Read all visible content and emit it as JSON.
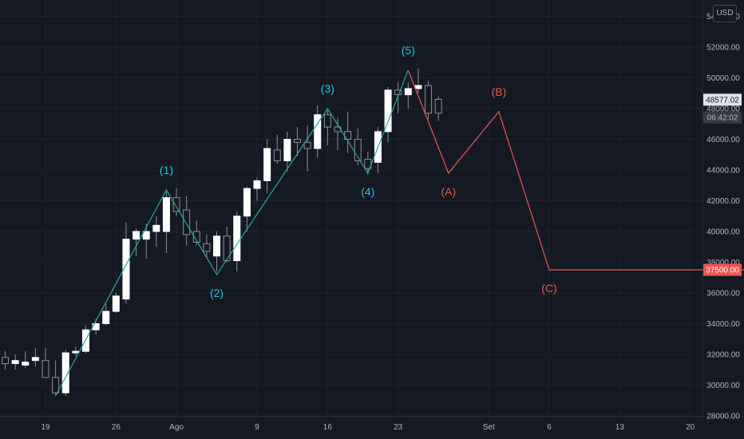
{
  "currency": "USD",
  "chart_data": {
    "type": "candlestick",
    "y_axis": {
      "min": 27000,
      "max": 55000,
      "tick_labels": [
        "54000.00",
        "52000.00",
        "50000.00",
        "48000.00",
        "46000.00",
        "44000.00",
        "42000.00",
        "40000.00",
        "38000.00",
        "36000.00",
        "34000.00",
        "32000.00",
        "30000.00",
        "28000.00"
      ],
      "ticks": [
        54000,
        52000,
        50000,
        48000,
        46000,
        44000,
        42000,
        40000,
        38000,
        36000,
        34000,
        32000,
        30000,
        28000
      ]
    },
    "x_axis": {
      "tick_labels": [
        "19",
        "26",
        "Ago",
        "9",
        "16",
        "23",
        "Set",
        "6",
        "13",
        "20"
      ],
      "tick_days": [
        0,
        7,
        13,
        21,
        28,
        35,
        44,
        50,
        57,
        64
      ]
    },
    "candles": [
      {
        "d": -5,
        "o": 32800,
        "h": 33200,
        "l": 31800,
        "c": 32000
      },
      {
        "d": -4,
        "o": 31800,
        "h": 32200,
        "l": 31000,
        "c": 31400
      },
      {
        "d": -3,
        "o": 31400,
        "h": 32000,
        "l": 31000,
        "c": 31600
      },
      {
        "d": -2,
        "o": 31300,
        "h": 32200,
        "l": 31100,
        "c": 31500
      },
      {
        "d": -1,
        "o": 31600,
        "h": 32400,
        "l": 31200,
        "c": 31800
      },
      {
        "d": 0,
        "o": 31600,
        "h": 32400,
        "l": 30500,
        "c": 30500
      },
      {
        "d": 1,
        "o": 30500,
        "h": 31600,
        "l": 29300,
        "c": 29500
      },
      {
        "d": 2,
        "o": 29500,
        "h": 32300,
        "l": 29300,
        "c": 32100
      },
      {
        "d": 3,
        "o": 32100,
        "h": 32500,
        "l": 31900,
        "c": 32200
      },
      {
        "d": 4,
        "o": 32200,
        "h": 33900,
        "l": 32100,
        "c": 33600
      },
      {
        "d": 5,
        "o": 33600,
        "h": 34300,
        "l": 33300,
        "c": 34000
      },
      {
        "d": 6,
        "o": 34000,
        "h": 35300,
        "l": 33900,
        "c": 34800
      },
      {
        "d": 7,
        "o": 34800,
        "h": 36000,
        "l": 34700,
        "c": 35800
      },
      {
        "d": 8,
        "o": 35600,
        "h": 40600,
        "l": 35300,
        "c": 39500
      },
      {
        "d": 9,
        "o": 39500,
        "h": 40200,
        "l": 38400,
        "c": 40000
      },
      {
        "d": 10,
        "o": 39500,
        "h": 40500,
        "l": 38200,
        "c": 40000
      },
      {
        "d": 11,
        "o": 40000,
        "h": 41000,
        "l": 39000,
        "c": 40400
      },
      {
        "d": 12,
        "o": 40000,
        "h": 42600,
        "l": 38600,
        "c": 42200
      },
      {
        "d": 13,
        "o": 42200,
        "h": 42800,
        "l": 41000,
        "c": 41300
      },
      {
        "d": 14,
        "o": 41400,
        "h": 42300,
        "l": 39100,
        "c": 39800
      },
      {
        "d": 15,
        "o": 40000,
        "h": 40700,
        "l": 39100,
        "c": 39300
      },
      {
        "d": 16,
        "o": 39200,
        "h": 39800,
        "l": 38300,
        "c": 38700
      },
      {
        "d": 17,
        "o": 38400,
        "h": 40000,
        "l": 37400,
        "c": 39700
      },
      {
        "d": 18,
        "o": 39700,
        "h": 40300,
        "l": 38000,
        "c": 38100
      },
      {
        "d": 19,
        "o": 38100,
        "h": 41300,
        "l": 37400,
        "c": 41000
      },
      {
        "d": 20,
        "o": 41000,
        "h": 42900,
        "l": 40000,
        "c": 42800
      },
      {
        "d": 21,
        "o": 42800,
        "h": 43500,
        "l": 42000,
        "c": 43300
      },
      {
        "d": 22,
        "o": 43300,
        "h": 46000,
        "l": 42500,
        "c": 45400
      },
      {
        "d": 23,
        "o": 45300,
        "h": 46300,
        "l": 44400,
        "c": 44600
      },
      {
        "d": 24,
        "o": 44600,
        "h": 46500,
        "l": 43900,
        "c": 46000
      },
      {
        "d": 25,
        "o": 46000,
        "h": 46800,
        "l": 44900,
        "c": 45800
      },
      {
        "d": 26,
        "o": 45800,
        "h": 46900,
        "l": 43900,
        "c": 45400
      },
      {
        "d": 27,
        "o": 45400,
        "h": 48200,
        "l": 44800,
        "c": 47600
      },
      {
        "d": 28,
        "o": 47600,
        "h": 47900,
        "l": 45600,
        "c": 46800
      },
      {
        "d": 29,
        "o": 46800,
        "h": 47400,
        "l": 45300,
        "c": 46500
      },
      {
        "d": 30,
        "o": 46500,
        "h": 47800,
        "l": 45100,
        "c": 46000
      },
      {
        "d": 31,
        "o": 46000,
        "h": 46700,
        "l": 44300,
        "c": 44600
      },
      {
        "d": 32,
        "o": 44700,
        "h": 45200,
        "l": 43700,
        "c": 44100
      },
      {
        "d": 33,
        "o": 44500,
        "h": 46800,
        "l": 43800,
        "c": 46500
      },
      {
        "d": 34,
        "o": 46500,
        "h": 49400,
        "l": 45800,
        "c": 49200
      },
      {
        "d": 35,
        "o": 49200,
        "h": 49700,
        "l": 47700,
        "c": 48900
      },
      {
        "d": 36,
        "o": 48900,
        "h": 49700,
        "l": 48000,
        "c": 49300
      },
      {
        "d": 37,
        "o": 49300,
        "h": 50600,
        "l": 49000,
        "c": 49500
      },
      {
        "d": 38,
        "o": 49500,
        "h": 49800,
        "l": 47300,
        "c": 47700
      },
      {
        "d": 39,
        "o": 48600,
        "h": 48800,
        "l": 47200,
        "c": 47700
      }
    ],
    "wave_lines": [
      {
        "name": "impulse",
        "color": "#26a69a",
        "points": [
          [
            1,
            29300
          ],
          [
            12,
            42700
          ],
          [
            17,
            37200
          ],
          [
            28,
            48000
          ],
          [
            32,
            43800
          ],
          [
            36,
            50500
          ]
        ]
      },
      {
        "name": "correction",
        "color": "#ef5350",
        "points": [
          [
            36,
            50500
          ],
          [
            40,
            43800
          ],
          [
            45,
            47800
          ],
          [
            50,
            37500
          ],
          [
            79,
            37500
          ]
        ]
      }
    ],
    "wave_labels": [
      {
        "text": "(1)",
        "d": 12,
        "v": 42700,
        "pos": "above",
        "color": "#26c6da"
      },
      {
        "text": "(2)",
        "d": 17,
        "v": 37200,
        "pos": "below",
        "color": "#26c6da"
      },
      {
        "text": "(3)",
        "d": 28,
        "v": 48000,
        "pos": "above",
        "color": "#26c6da"
      },
      {
        "text": "(4)",
        "d": 32,
        "v": 43800,
        "pos": "below",
        "color": "#26c6da"
      },
      {
        "text": "(5)",
        "d": 36,
        "v": 50500,
        "pos": "above",
        "color": "#26c6da"
      },
      {
        "text": "(A)",
        "d": 40,
        "v": 43800,
        "pos": "below",
        "color": "#ef5350"
      },
      {
        "text": "(B)",
        "d": 45,
        "v": 47800,
        "pos": "above",
        "color": "#ef5350"
      },
      {
        "text": "(C)",
        "d": 50,
        "v": 37500,
        "pos": "below",
        "color": "#ef5350"
      }
    ],
    "price_tags": [
      {
        "name": "current-price",
        "value": 48577.02,
        "text": "48577.02",
        "bg": "#e0e3eb",
        "fg": "#131722"
      },
      {
        "name": "countdown",
        "value": 47420,
        "text": "06:42:02",
        "bg": "#363a45",
        "fg": "#b2b5be"
      },
      {
        "name": "target-price",
        "value": 37500,
        "text": "37500.00",
        "bg": "#ef5350",
        "fg": "#ffffff"
      }
    ],
    "colors": {
      "background": "#151924",
      "grid": "#1f2330",
      "up": "#ffffff",
      "down": "#151924",
      "outline": "#8d8f96",
      "axis_text": "#b2b5be"
    }
  }
}
